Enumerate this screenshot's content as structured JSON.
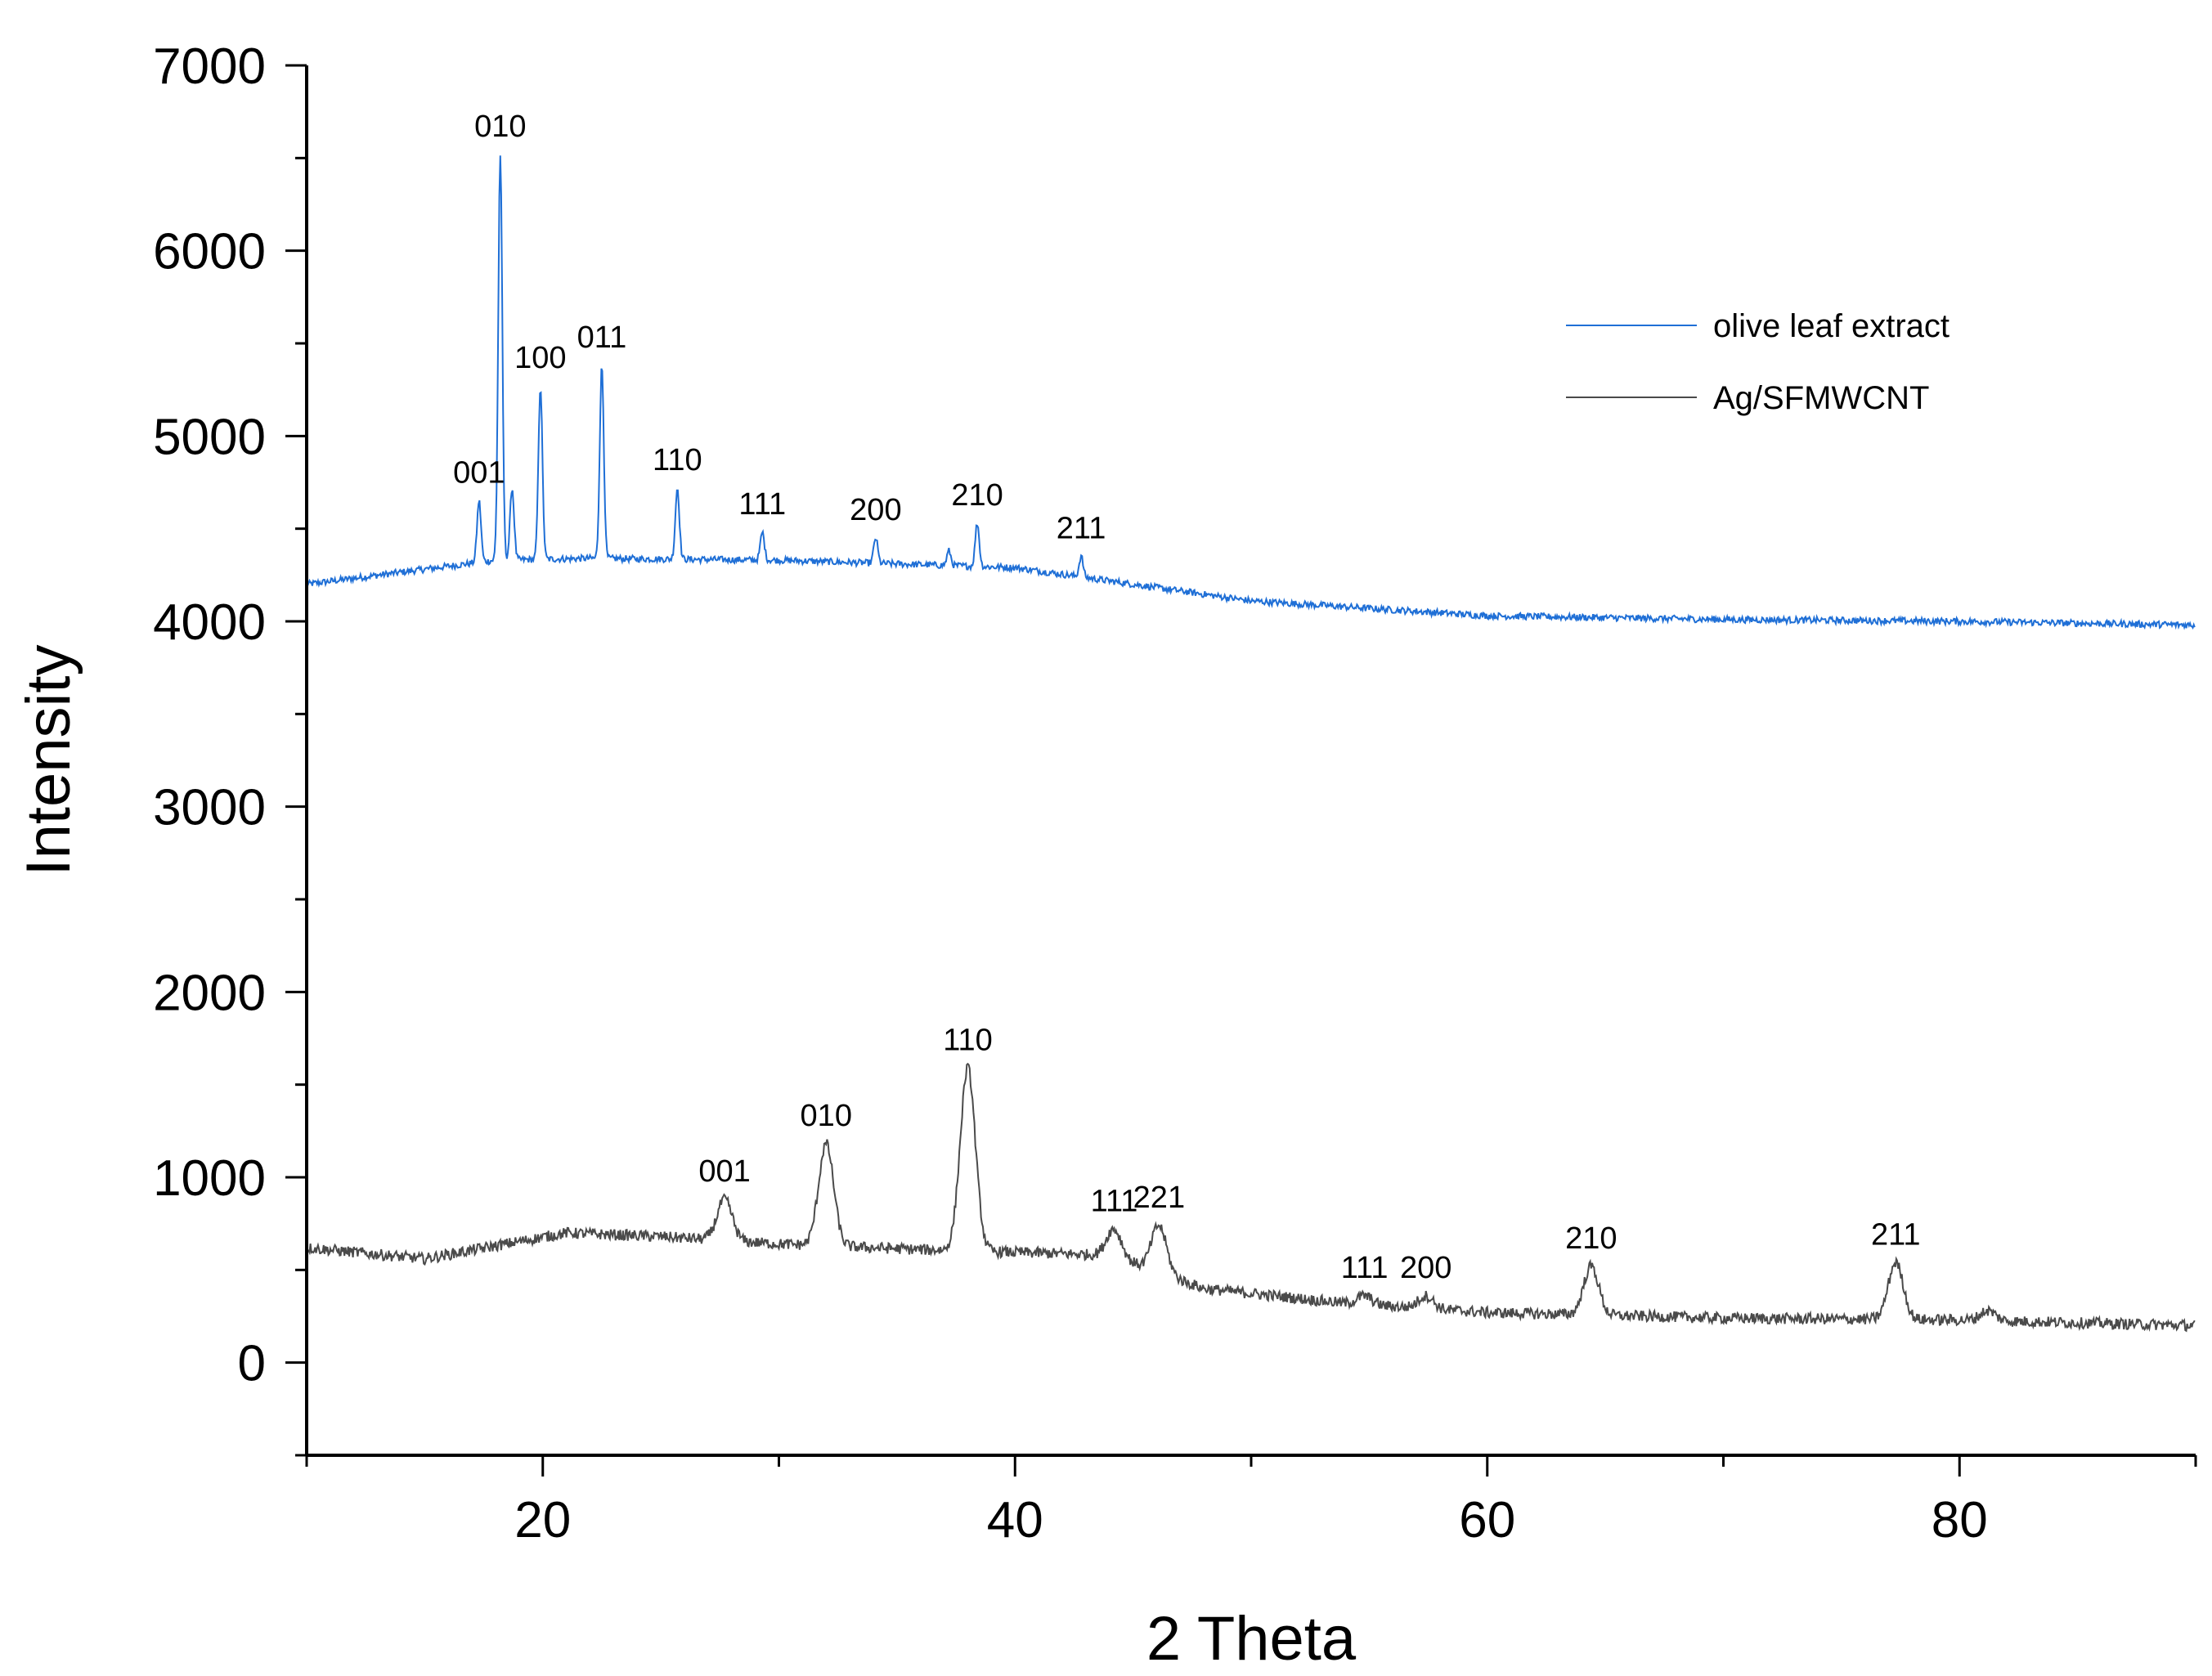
{
  "chart_data": {
    "type": "line",
    "xlabel": "2 Theta",
    "ylabel": "Intensity",
    "xlim": [
      10,
      90
    ],
    "ylim": [
      -500,
      7000
    ],
    "x_ticks": [
      20,
      40,
      60,
      80
    ],
    "x_tick_labels": [
      "20",
      "40",
      "60",
      "80"
    ],
    "y_ticks": [
      0,
      1000,
      2000,
      3000,
      4000,
      5000,
      6000,
      7000
    ],
    "y_tick_labels": [
      "0",
      "1000",
      "2000",
      "3000",
      "4000",
      "5000",
      "6000",
      "7000"
    ],
    "grid": false,
    "legend_position": "top-right",
    "series": [
      {
        "name": "olive leaf extract",
        "color": "#1f6fd6",
        "baseline": [
          [
            10,
            4200
          ],
          [
            18,
            4330
          ],
          [
            22,
            4340
          ],
          [
            30,
            4330
          ],
          [
            40,
            4290
          ],
          [
            45,
            4200
          ],
          [
            50,
            4110
          ],
          [
            60,
            4030
          ],
          [
            70,
            4010
          ],
          [
            80,
            4000
          ],
          [
            90,
            3980
          ]
        ],
        "noise": 18,
        "peaks": [
          {
            "x": 17.3,
            "y": 4650,
            "label": "001"
          },
          {
            "x": 18.2,
            "y": 6520,
            "label": "010"
          },
          {
            "x": 18.7,
            "y": 4720,
            "label": ""
          },
          {
            "x": 19.9,
            "y": 5270,
            "label": "100"
          },
          {
            "x": 22.5,
            "y": 5380,
            "label": "011"
          },
          {
            "x": 25.7,
            "y": 4720,
            "label": "110"
          },
          {
            "x": 29.3,
            "y": 4480,
            "label": "111"
          },
          {
            "x": 34.1,
            "y": 4450,
            "label": "200"
          },
          {
            "x": 37.2,
            "y": 4380,
            "label": ""
          },
          {
            "x": 38.4,
            "y": 4530,
            "label": "210"
          },
          {
            "x": 42.8,
            "y": 4350,
            "label": "211"
          }
        ]
      },
      {
        "name": "Ag/SFMWCNT",
        "color": "#4a4a4a",
        "baseline": [
          [
            10,
            620
          ],
          [
            15,
            560
          ],
          [
            21,
            700
          ],
          [
            25,
            680
          ],
          [
            30,
            640
          ],
          [
            36,
            610
          ],
          [
            44,
            580
          ],
          [
            48,
            400
          ],
          [
            54,
            320
          ],
          [
            60,
            270
          ],
          [
            70,
            240
          ],
          [
            80,
            230
          ],
          [
            90,
            200
          ]
        ],
        "noise": 30,
        "peaks": [
          {
            "x": 27.7,
            "y": 880,
            "label": "001"
          },
          {
            "x": 32.0,
            "y": 1180,
            "label": "010"
          },
          {
            "x": 38.0,
            "y": 1590,
            "label": "110"
          },
          {
            "x": 44.2,
            "y": 720,
            "label": "111"
          },
          {
            "x": 46.1,
            "y": 740,
            "label": "221"
          },
          {
            "x": 54.8,
            "y": 360,
            "label": "111"
          },
          {
            "x": 57.4,
            "y": 360,
            "label": "200"
          },
          {
            "x": 64.4,
            "y": 520,
            "label": "210"
          },
          {
            "x": 77.3,
            "y": 540,
            "label": "211"
          },
          {
            "x": 81.2,
            "y": 280,
            "label": ""
          }
        ]
      }
    ]
  }
}
